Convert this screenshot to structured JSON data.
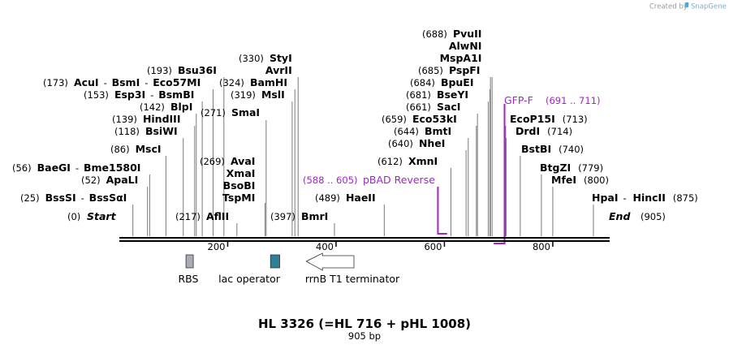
{
  "title": "HL 3326 (=HL 716 + pHL 1008)",
  "length_label": "905 bp",
  "credit": "Created by",
  "brand": "SnapGene",
  "colors": {
    "primer": "#a024c8",
    "rbs": "#a8acb4",
    "lac_operator": "#2e8096",
    "terminator": "#ffffff",
    "backbone": "#000000"
  },
  "sequence": {
    "length": 905
  },
  "start": {
    "name": "Start",
    "pos_label": "(0)"
  },
  "end": {
    "name": "End",
    "pos_label": "(905)"
  },
  "ruler": [
    {
      "value": 200,
      "label": "200"
    },
    {
      "value": 400,
      "label": "400"
    },
    {
      "value": 600,
      "label": "600"
    },
    {
      "value": 800,
      "label": "800"
    }
  ],
  "enzymes": [
    {
      "pos": 25,
      "pos_label": "(25)",
      "name": "BssSI",
      "name2": "BssSαI"
    },
    {
      "pos": 52,
      "pos_label": "(52)",
      "name": "ApaLI"
    },
    {
      "pos": 56,
      "pos_label": "(56)",
      "name": "BaeGI",
      "name2": "Bme1580I"
    },
    {
      "pos": 86,
      "pos_label": "(86)",
      "name": "MscI"
    },
    {
      "pos": 118,
      "pos_label": "(118)",
      "name": "BsiWI"
    },
    {
      "pos": 139,
      "pos_label": "(139)",
      "name": "HindIII"
    },
    {
      "pos": 142,
      "pos_label": "(142)",
      "name": "BlpI"
    },
    {
      "pos": 153,
      "pos_label": "(153)",
      "name": "Esp3I",
      "name2": "BsmBI"
    },
    {
      "pos": 173,
      "pos_label": "(173)",
      "name": "AcuI",
      "name2": "BsmI",
      "name3": "Eco57MI"
    },
    {
      "pos": 193,
      "pos_label": "(193)",
      "name": "Bsu36I"
    },
    {
      "pos": 217,
      "pos_label": "(217)",
      "name": "AflII"
    },
    {
      "pos": 269,
      "pos_label": "(269)",
      "name": "AvaI",
      "extra": [
        "XmaI",
        "BsoBI",
        "TspMI"
      ]
    },
    {
      "pos": 271,
      "pos_label": "(271)",
      "name": "SmaI"
    },
    {
      "pos": 319,
      "pos_label": "(319)",
      "name": "MslI"
    },
    {
      "pos": 324,
      "pos_label": "(324)",
      "name": "BamHI"
    },
    {
      "pos": 330,
      "pos_label": "(330)",
      "name": "StyI",
      "extra": [
        "AvrII"
      ]
    },
    {
      "pos": 397,
      "pos_label": "(397)",
      "name": "BmrI"
    },
    {
      "pos": 489,
      "pos_label": "(489)",
      "name": "HaeII"
    },
    {
      "pos": 612,
      "pos_label": "(612)",
      "name": "XmnI"
    },
    {
      "pos": 640,
      "pos_label": "(640)",
      "name": "NheI"
    },
    {
      "pos": 644,
      "pos_label": "(644)",
      "name": "BmtI"
    },
    {
      "pos": 659,
      "pos_label": "(659)",
      "name": "Eco53kI"
    },
    {
      "pos": 661,
      "pos_label": "(661)",
      "name": "SacI"
    },
    {
      "pos": 681,
      "pos_label": "(681)",
      "name": "BseYI"
    },
    {
      "pos": 684,
      "pos_label": "(684)",
      "name": "BpuEI"
    },
    {
      "pos": 685,
      "pos_label": "(685)",
      "name": "PspFI"
    },
    {
      "pos": 688,
      "pos_label": "(688)",
      "name": "PvuII",
      "extra": [
        "AlwNI",
        "MspA1I"
      ]
    },
    {
      "pos": 713,
      "pos_label": "(713)",
      "name": "EcoP15I"
    },
    {
      "pos": 714,
      "pos_label": "(714)",
      "name": "DrdI"
    },
    {
      "pos": 740,
      "pos_label": "(740)",
      "name": "BstBI"
    },
    {
      "pos": 779,
      "pos_label": "(779)",
      "name": "BtgZI"
    },
    {
      "pos": 800,
      "pos_label": "(800)",
      "name": "MfeI"
    },
    {
      "pos": 875,
      "pos_label": "(875)",
      "name": "HpaI",
      "name2": "HincII"
    }
  ],
  "primers": [
    {
      "name": "pBAD Reverse",
      "range_label": "(588 .. 605)",
      "start": 588,
      "end": 605,
      "direction": "reverse"
    },
    {
      "name": "GFP-F",
      "range_label": "(691 .. 711)",
      "start": 691,
      "end": 711,
      "direction": "forward"
    }
  ],
  "features": [
    {
      "name": "RBS",
      "start": 123,
      "end": 136,
      "type": "box"
    },
    {
      "name": "lac operator",
      "start": 279,
      "end": 296,
      "type": "box"
    },
    {
      "name": "rrnB T1 terminator",
      "start": 345,
      "end": 433,
      "type": "arrow-left"
    }
  ]
}
